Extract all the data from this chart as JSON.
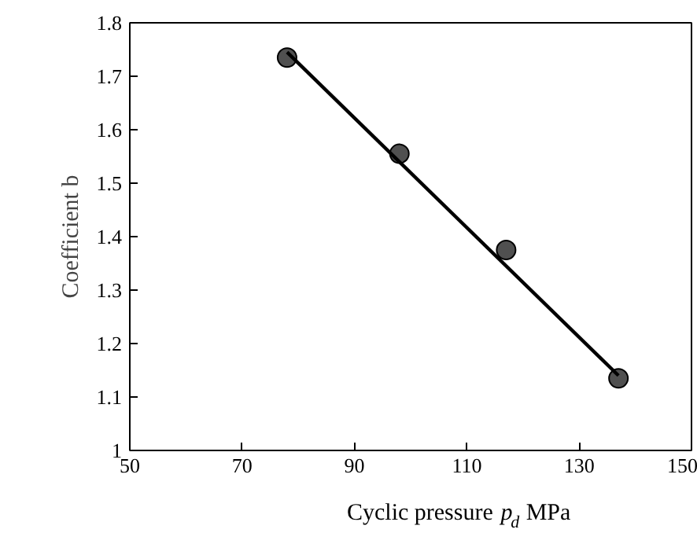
{
  "chart_data": {
    "type": "scatter",
    "xlabel": "Cyclic pressure p$_{d}$ MPa",
    "ylabel": "Coefficient b",
    "series": [
      {
        "color": "#505050",
        "marker": "circle",
        "x": [
          78,
          98,
          117,
          137
        ],
        "values": [
          1.735,
          1.555,
          1.375,
          1.135
        ]
      },
      {
        "type": "line",
        "color": "#000000",
        "x": [
          78,
          137
        ],
        "values": [
          1.745,
          1.14
        ]
      }
    ],
    "xlim": [
      50,
      150
    ],
    "xticks": [
      50,
      70,
      90,
      110,
      130,
      150
    ],
    "ylim": [
      1,
      1.8
    ],
    "yticks": [
      1,
      1.1,
      1.2,
      1.3,
      1.4,
      1.5,
      1.6,
      1.7,
      1.8
    ],
    "grid": false
  }
}
